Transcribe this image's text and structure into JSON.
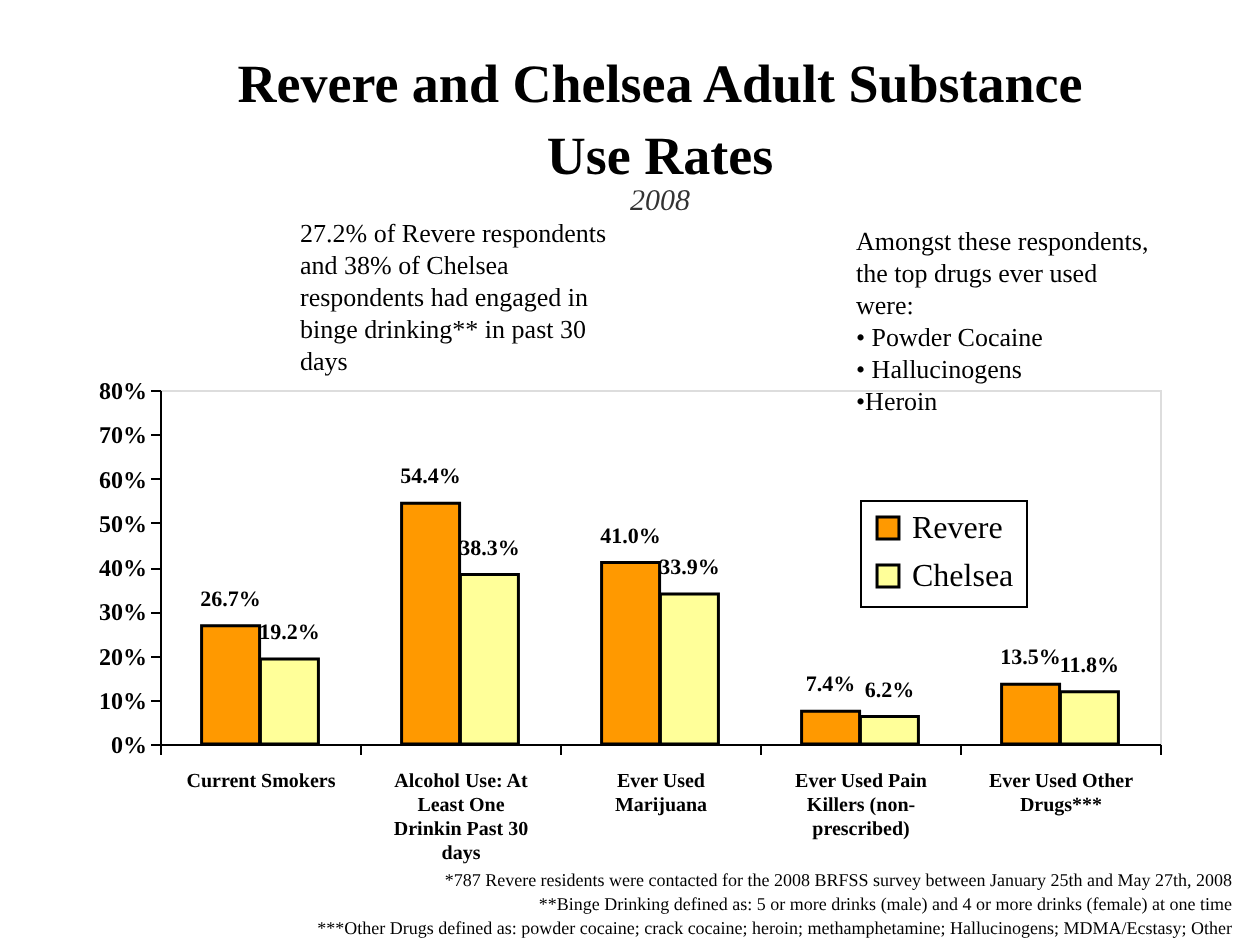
{
  "chart_data": {
    "type": "bar",
    "title": "Revere and Chelsea Adult Substance Use Rates",
    "subtitle": "2008",
    "categories": [
      "Current Smokers",
      "Alcohol Use: At Least One Drinkin Past 30 days",
      "Ever Used Marijuana",
      "Ever Used Pain Killers (non-prescribed)",
      "Ever Used Other Drugs***"
    ],
    "series": [
      {
        "name": "Revere",
        "color": "#ff9900",
        "values": [
          26.7,
          54.4,
          41.0,
          7.4,
          13.5
        ],
        "value_labels": [
          "26.7%",
          "54.4%",
          "41.0%",
          "7.4%",
          "13.5%"
        ]
      },
      {
        "name": "Chelsea",
        "color": "#ffff99",
        "values": [
          19.2,
          38.3,
          33.9,
          6.2,
          11.8
        ],
        "value_labels": [
          "19.2%",
          "38.3%",
          "33.9%",
          "6.2%",
          "11.8%"
        ]
      }
    ],
    "ylim": [
      0,
      80
    ],
    "yticks": [
      {
        "value": 0,
        "label": "0%"
      },
      {
        "value": 10,
        "label": "10%"
      },
      {
        "value": 20,
        "label": "20%"
      },
      {
        "value": 30,
        "label": "30%"
      },
      {
        "value": 40,
        "label": "40%"
      },
      {
        "value": 50,
        "label": "50%"
      },
      {
        "value": 60,
        "label": "60%"
      },
      {
        "value": 70,
        "label": "70%"
      },
      {
        "value": 80,
        "label": "80%"
      }
    ],
    "grid": false,
    "legend": "right",
    "annotations": [
      "27.2% of Revere respondents and 38% of Chelsea respondents had engaged in binge drinking** in past 30 days",
      "Amongst these respondents, the top drugs ever used were: • Powder Cocaine • Hallucinogens •Heroin",
      "*787 Revere residents were contacted for the 2008 BRFSS survey between January 25th and May 27th, 2008",
      "**Binge Drinking defined as:  5 or more drinks (male) and 4 or more drinks (female) at one time",
      "***Other Drugs defined as:  powder cocaine; crack cocaine; heroin; methamphetamine; Hallucinogens; MDMA/Ecstasy; Other"
    ]
  }
}
